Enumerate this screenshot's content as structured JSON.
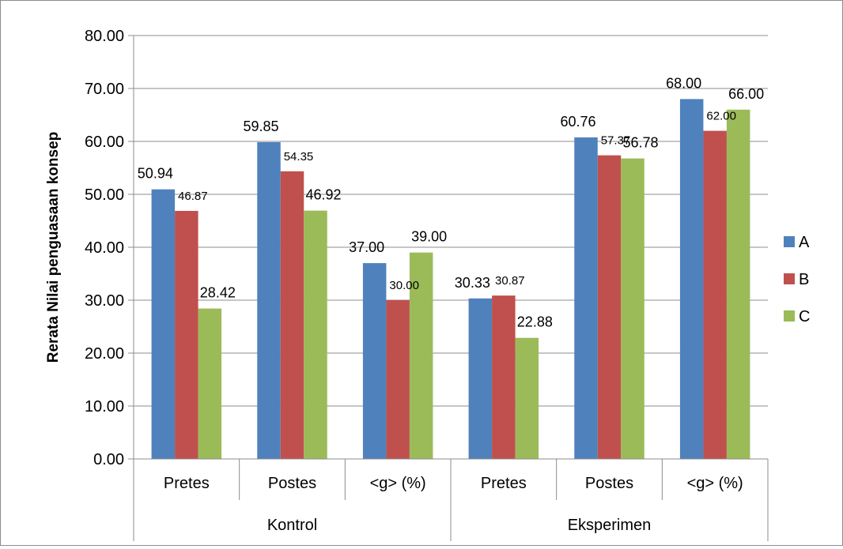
{
  "chart_data": {
    "type": "bar",
    "ylabel": "Rerata Nilai penguasaan konsep",
    "ylim": [
      0,
      80
    ],
    "ytick_step": 10,
    "ytick_labels": [
      "0.00",
      "10.00",
      "20.00",
      "30.00",
      "40.00",
      "50.00",
      "60.00",
      "70.00",
      "80.00"
    ],
    "grid": true,
    "legend_position": "right",
    "groups": [
      {
        "label": "Kontrol",
        "categories": [
          "Pretes",
          "Postes",
          "<g> (%)"
        ]
      },
      {
        "label": "Eksperimen",
        "categories": [
          "Pretes",
          "Postes",
          "<g> (%)"
        ]
      }
    ],
    "series": [
      {
        "name": "A",
        "color": "#4f81bd",
        "values": [
          50.94,
          59.85,
          37.0,
          30.33,
          60.76,
          68.0
        ],
        "labels": [
          "50.94",
          "59.85",
          "37.00",
          "30.33",
          "60.76",
          "68.00"
        ]
      },
      {
        "name": "B",
        "color": "#c0504d",
        "values": [
          46.87,
          54.35,
          30.0,
          30.87,
          57.37,
          62.0
        ],
        "labels": [
          "46.87",
          "54.35",
          "30.00",
          "30.87",
          "57.37",
          "62.00"
        ]
      },
      {
        "name": "C",
        "color": "#9bbb59",
        "values": [
          28.42,
          46.92,
          39.0,
          22.88,
          56.78,
          66.0
        ],
        "labels": [
          "28.42",
          "46.92",
          "39.00",
          "22.88",
          "56.78",
          "66.00"
        ]
      }
    ]
  }
}
